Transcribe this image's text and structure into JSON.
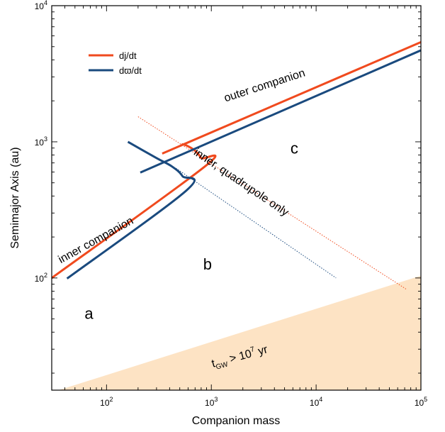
{
  "chart_data": {
    "type": "line",
    "xlabel": "Companion mass",
    "ylabel": "Semimajor Axis (au)",
    "xscale": "log",
    "yscale": "log",
    "xlim": [
      30,
      100000
    ],
    "ylim": [
      15,
      10000
    ],
    "x_ticks": [
      {
        "value": 100,
        "base": "10",
        "exp": "2"
      },
      {
        "value": 1000,
        "base": "10",
        "exp": "3"
      },
      {
        "value": 10000,
        "base": "10",
        "exp": "4"
      },
      {
        "value": 100000,
        "base": "10",
        "exp": "5"
      }
    ],
    "y_ticks": [
      {
        "value": 100,
        "base": "10",
        "exp": "2"
      },
      {
        "value": 1000,
        "base": "10",
        "exp": "3"
      },
      {
        "value": 10000,
        "base": "10",
        "exp": "4"
      }
    ],
    "grid": false,
    "legend": {
      "placement": "top-left",
      "entries": [
        {
          "label": "dj/dt",
          "color": "#f04a1e"
        },
        {
          "label": "dϖ/dt",
          "color": "#1a4a7e"
        }
      ]
    },
    "series": [
      {
        "legend_index": 0,
        "color": "#f04a1e",
        "style": "solid",
        "points": [
          [
            30,
            100
          ],
          [
            870,
            660
          ],
          [
            800,
            760
          ],
          [
            700,
            860
          ],
          [
            580,
            940
          ],
          [
            520,
            960
          ]
        ]
      },
      {
        "legend_index": 0,
        "color": "#f04a1e",
        "style": "solid",
        "points": [
          [
            340,
            820
          ],
          [
            100000,
            5400
          ]
        ]
      },
      {
        "legend_index": 0,
        "color": "#f04a1e",
        "style": "dotted",
        "points": [
          [
            200,
            1530
          ],
          [
            72000,
            83
          ]
        ]
      },
      {
        "legend_index": 1,
        "color": "#1a4a7e",
        "style": "solid",
        "points": [
          [
            42,
            99
          ],
          [
            580,
            440
          ],
          [
            530,
            560
          ],
          [
            420,
            660
          ],
          [
            300,
            760
          ],
          [
            160,
            1000
          ]
        ]
      },
      {
        "legend_index": 1,
        "color": "#1a4a7e",
        "style": "solid",
        "points": [
          [
            210,
            595
          ],
          [
            100000,
            4700
          ]
        ]
      },
      {
        "legend_index": 1,
        "color": "#1a4a7e",
        "style": "dotted",
        "points": [
          [
            460,
            640
          ],
          [
            15500,
            100
          ]
        ]
      }
    ],
    "shaded_region": {
      "color": "#fde3c4",
      "points": [
        [
          35,
          15
        ],
        [
          100000,
          15
        ],
        [
          100000,
          104
        ],
        [
          35,
          15
        ]
      ]
    },
    "annotations": [
      {
        "text": "outer companion",
        "x": 3300,
        "y": 2450,
        "rotate": -18
      },
      {
        "text": "inner companion",
        "x": 82,
        "y": 180,
        "rotate": -29
      },
      {
        "text": "inner, quadrupole only",
        "x": 1850,
        "y": 480,
        "rotate": 34
      }
    ],
    "region_labels": [
      {
        "text": "a",
        "x": 68,
        "y": 50
      },
      {
        "text": "b",
        "x": 920,
        "y": 115
      },
      {
        "text": "c",
        "x": 6200,
        "y": 820
      }
    ],
    "shaded_label": {
      "base": "t",
      "sub": "GW",
      "mid": " > 10",
      "sup": "7",
      "tail": " yr",
      "x": 1900,
      "y": 25,
      "rotate": -15
    }
  }
}
